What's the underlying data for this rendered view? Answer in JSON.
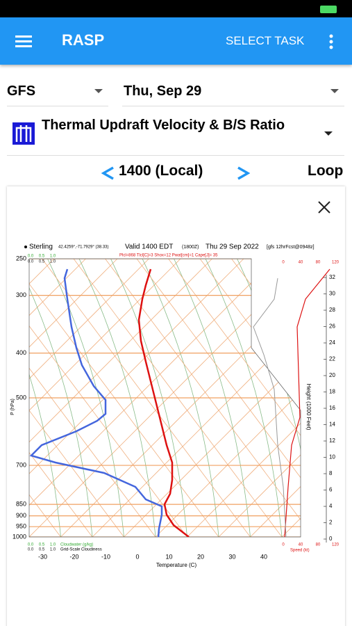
{
  "app_bar": {
    "title": "RASP",
    "action": "SELECT TASK"
  },
  "selectors": {
    "model": "GFS",
    "date": "Thu, Sep 29",
    "parameter": "Thermal Updraft Velocity & B/S Ratio"
  },
  "time_nav": {
    "time": "1400 (Local)",
    "loop": "Loop"
  },
  "sounding": {
    "station": "Sterling",
    "coords": "42.4259°,-71.7929° (38.33)",
    "valid": "Valid 1400 EDT",
    "valid_utc": "(1800Z)",
    "date": "Thu 29 Sep 2022",
    "source": "[gfs 12hrFcst@0948z]",
    "indices": "Plcl=868 Tlcl[C]=3 Shox=12 Pwat[cm]=1 Cape[J]= 35",
    "pressure_label": "P (hPa)",
    "pressure_ticks": [
      250,
      300,
      400,
      500,
      700,
      850,
      900,
      950,
      1000
    ],
    "temp_label": "Temperature (C)",
    "temp_ticks": [
      -30,
      -20,
      -10,
      0,
      10,
      20,
      30,
      40
    ],
    "height_label": "Height (1000 Feet)",
    "height_ticks": [
      0,
      2,
      4,
      6,
      8,
      10,
      12,
      14,
      16,
      18,
      20,
      22,
      24,
      26,
      28,
      30,
      32
    ],
    "cloud_ticks": [
      "0.0",
      "0.5",
      "1.0"
    ],
    "cloudwater_label": "Cloudwater (g/kg)",
    "cloudiness_label": "Grid-Scale Cloudiness",
    "speed_label": "Speed (kt)",
    "speed_ticks": [
      0,
      40,
      80,
      120
    ]
  }
}
